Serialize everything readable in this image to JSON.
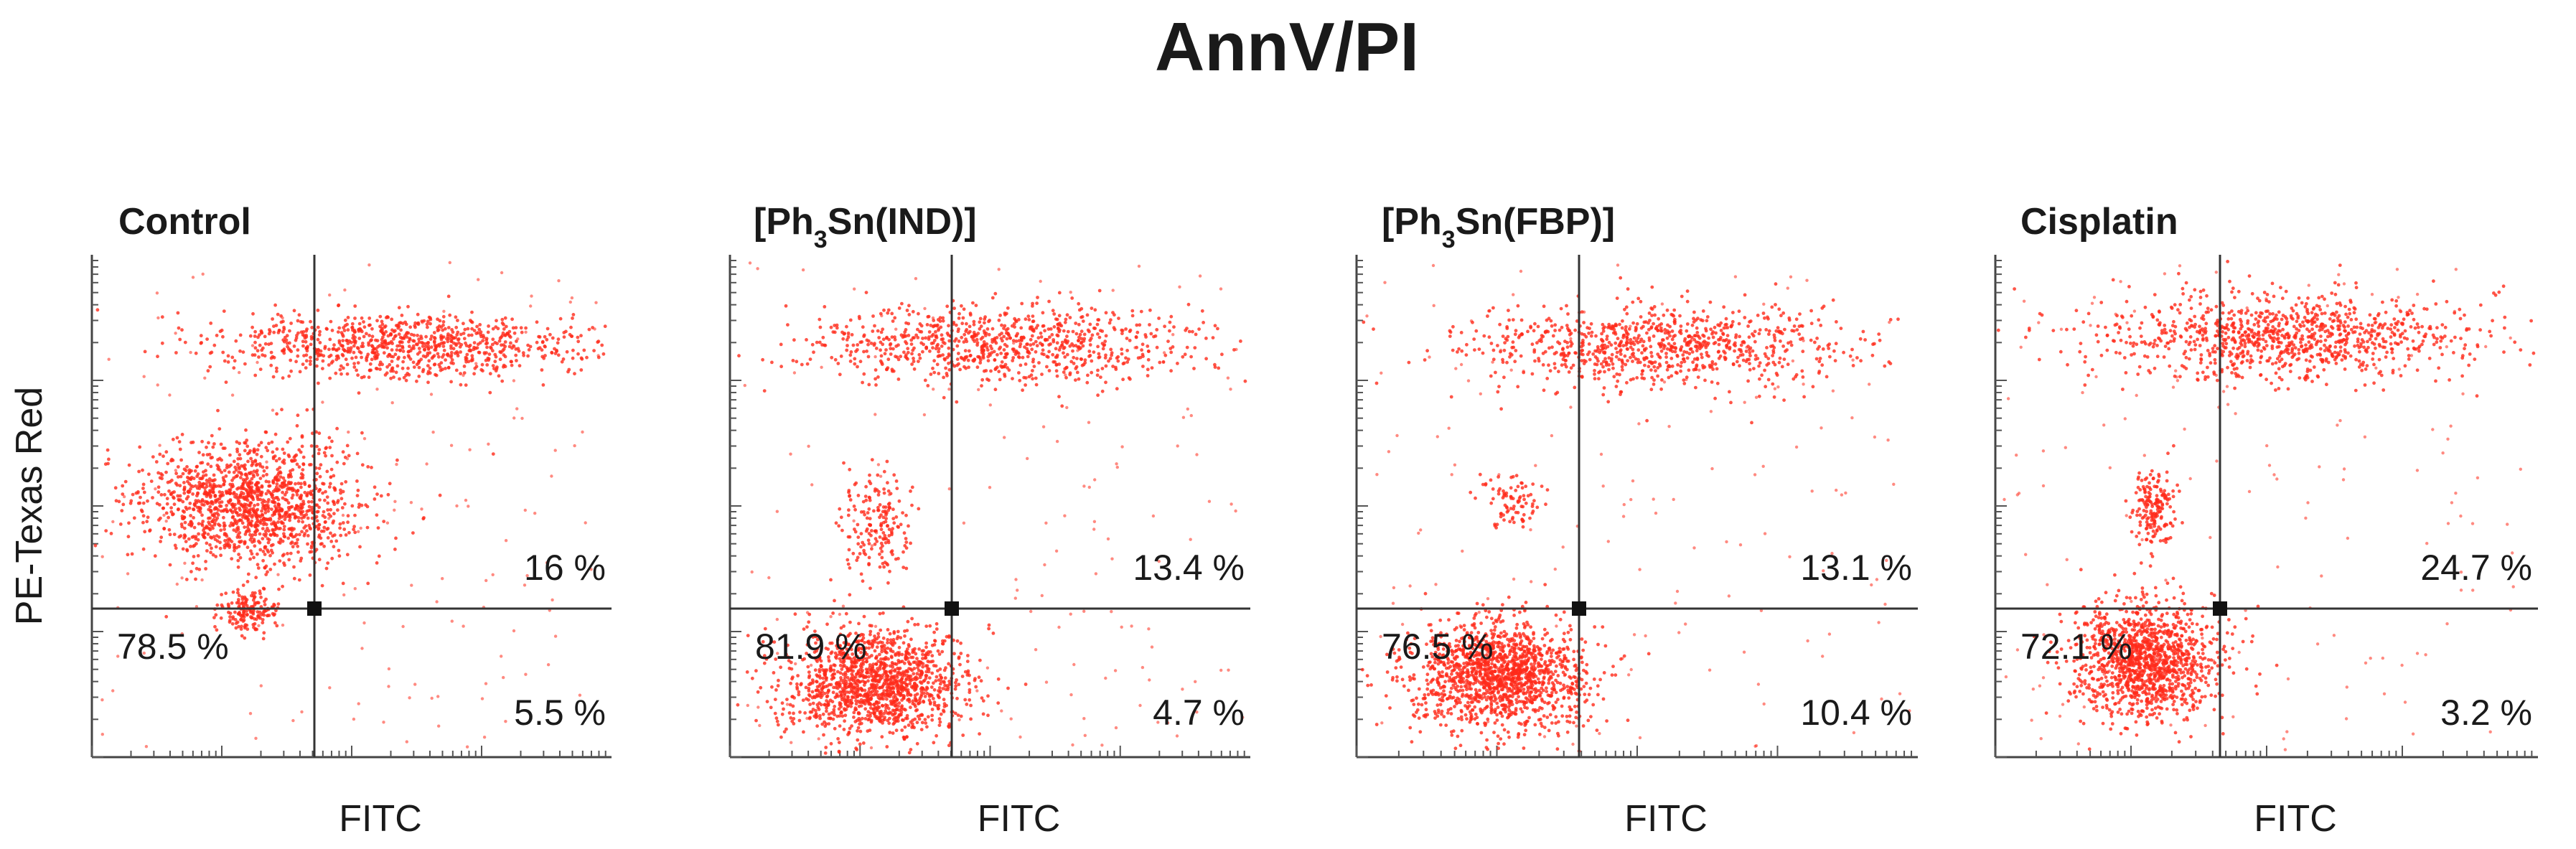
{
  "figure_title": "AnnV/PI",
  "colors": {
    "events": "#ff2a1a",
    "gate": "#333333"
  },
  "chart_data": [
    {
      "type": "scatter",
      "title": "Control",
      "title_parts": [
        {
          "text": "Control"
        }
      ],
      "xlabel": "FITC",
      "ylabel": "PE-Texas Red",
      "quadrants": {
        "lower_left": "78.5 %",
        "upper_right": "16 %",
        "lower_right": "5.5 %"
      },
      "x_scale": "log",
      "y_scale": "log"
    },
    {
      "type": "scatter",
      "title": "[Ph3Sn(IND)]",
      "title_parts": [
        {
          "text": "[Ph"
        },
        {
          "text": "3",
          "sub": true
        },
        {
          "text": "Sn(IND)]"
        }
      ],
      "xlabel": "FITC",
      "ylabel": "",
      "quadrants": {
        "lower_left": "81.9 %",
        "upper_right": "13.4 %",
        "lower_right": "4.7 %"
      },
      "x_scale": "log",
      "y_scale": "log"
    },
    {
      "type": "scatter",
      "title": "[Ph3Sn(FBP)]",
      "title_parts": [
        {
          "text": "[Ph"
        },
        {
          "text": "3",
          "sub": true
        },
        {
          "text": "Sn(FBP)]"
        }
      ],
      "xlabel": "FITC",
      "ylabel": "",
      "quadrants": {
        "lower_left": "76.5 %",
        "upper_right": "13.1 %",
        "lower_right": "10.4 %"
      },
      "x_scale": "log",
      "y_scale": "log"
    },
    {
      "type": "scatter",
      "title": "Cisplatin",
      "title_parts": [
        {
          "text": "Cisplatin"
        }
      ],
      "xlabel": "FITC",
      "ylabel": "",
      "quadrants": {
        "lower_left": "72.1 %",
        "upper_right": "24.7 %",
        "lower_right": "3.2 %"
      },
      "x_scale": "log",
      "y_scale": "log"
    }
  ]
}
